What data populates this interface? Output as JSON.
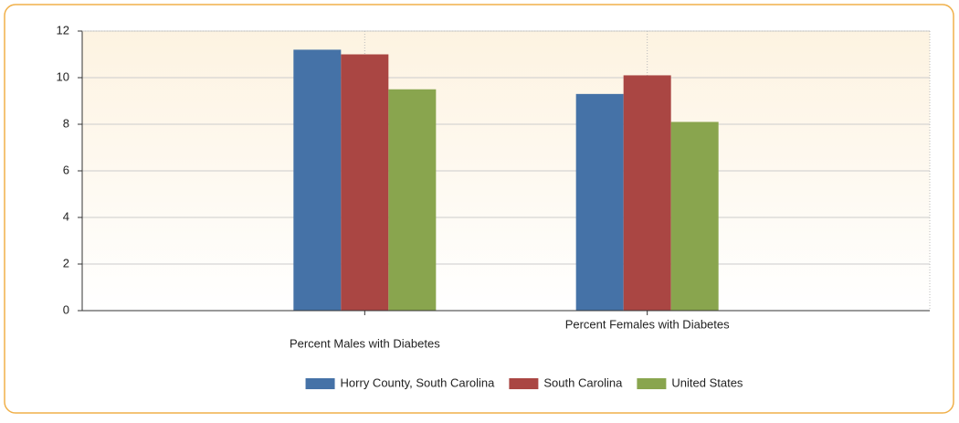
{
  "chart_data": {
    "type": "bar",
    "categories": [
      "Percent Males with Diabetes",
      "Percent Females with Diabetes"
    ],
    "series": [
      {
        "name": "Horry County, South Carolina",
        "color": "#4572a7",
        "values": [
          11.2,
          9.3
        ]
      },
      {
        "name": "South Carolina",
        "color": "#aa4643",
        "values": [
          11.0,
          10.1
        ]
      },
      {
        "name": "United States",
        "color": "#89a54e",
        "values": [
          9.5,
          8.1
        ]
      }
    ],
    "ylim": [
      0,
      12
    ],
    "yticks": [
      0,
      2,
      4,
      6,
      8,
      10,
      12
    ],
    "grid": true,
    "legend": "bottom"
  }
}
